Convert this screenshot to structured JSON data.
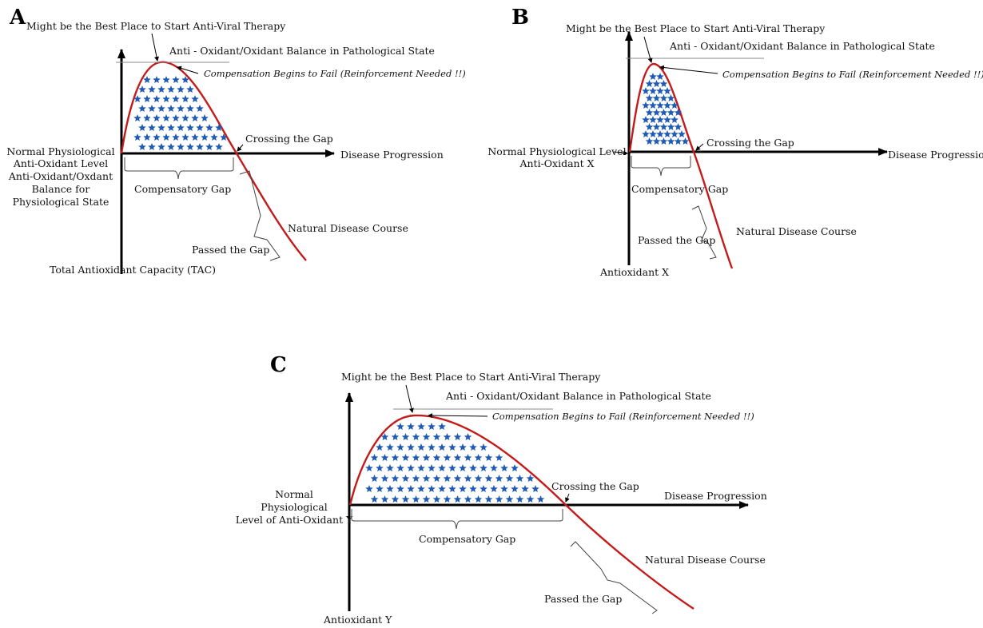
{
  "colors": {
    "curve": "#c41a1a",
    "star": "#1f5bb5",
    "axis": "#000000"
  },
  "panels": {
    "a": {
      "letter": "A",
      "best_place": "Might be the Best Place to Start Anti-Viral Therapy",
      "balance": "Anti - Oxidant/Oxidant Balance in Pathological State",
      "compensation": "Compensation Begins to Fail (Reinforcement Needed !!)",
      "crossing": "Crossing the Gap",
      "progression": "Disease Progression",
      "normal_lines": [
        "Normal Physiological",
        "Anti-Oxidant Level",
        "Anti-Oxidant/Oxdant",
        "Balance for",
        "Physiological State"
      ],
      "comp_gap": "Compensatory Gap",
      "natural": "Natural Disease Course",
      "passed": "Passed the Gap",
      "y_axis": "Total Antioxidant Capacity (TAC)"
    },
    "b": {
      "letter": "B",
      "best_place": "Might be the Best Place to Start Anti-Viral Therapy",
      "balance": "Anti - Oxidant/Oxidant Balance in Pathological State",
      "compensation": "Compensation Begins to Fail (Reinforcement Needed !!)",
      "crossing": "Crossing the Gap",
      "progression": "Disease Progression",
      "normal_lines": [
        "Normal Physiological Level",
        "Anti-Oxidant X"
      ],
      "comp_gap": "Compensatory Gap",
      "natural": "Natural Disease Course",
      "passed": "Passed the Gap",
      "y_axis": "Antioxidant X"
    },
    "c": {
      "letter": "C",
      "best_place": "Might be the Best Place to Start Anti-Viral Therapy",
      "balance": "Anti - Oxidant/Oxidant Balance in Pathological State",
      "compensation": "Compensation Begins to Fail (Reinforcement Needed !!)",
      "crossing": "Crossing the Gap",
      "progression": "Disease Progression",
      "normal_lines": [
        "Normal",
        "Physiological",
        "Level of Anti-Oxidant Y"
      ],
      "comp_gap": "Compensatory Gap",
      "natural": "Natural Disease Course",
      "passed": "Passed the Gap",
      "y_axis": "Antioxidant Y"
    }
  }
}
